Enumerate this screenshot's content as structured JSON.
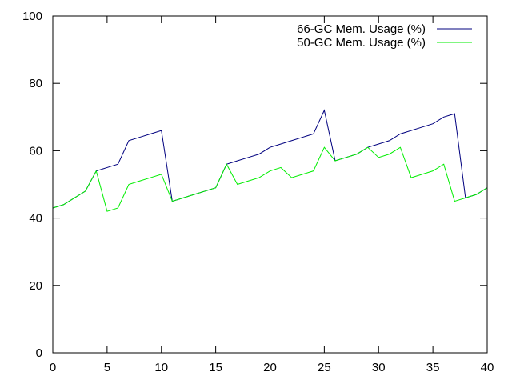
{
  "chart_data": {
    "type": "line",
    "xlim": [
      0,
      40
    ],
    "ylim": [
      0,
      100
    ],
    "x_ticks": [
      0,
      5,
      10,
      15,
      20,
      25,
      30,
      35,
      40
    ],
    "y_ticks": [
      0,
      20,
      40,
      60,
      80,
      100
    ],
    "grid": false,
    "legend_position": "top-right",
    "series": [
      {
        "name": "66-GC Mem. Usage (%)",
        "color": "#00007f",
        "points": [
          [
            0,
            43
          ],
          [
            1,
            44
          ],
          [
            2,
            46
          ],
          [
            3,
            48
          ],
          [
            4,
            54
          ],
          [
            5,
            55
          ],
          [
            6,
            56
          ],
          [
            7,
            63
          ],
          [
            8,
            64
          ],
          [
            9,
            65
          ],
          [
            10,
            66
          ],
          [
            11,
            45
          ],
          [
            12,
            46
          ],
          [
            13,
            47
          ],
          [
            14,
            48
          ],
          [
            15,
            49
          ],
          [
            16,
            56
          ],
          [
            17,
            57
          ],
          [
            18,
            58
          ],
          [
            19,
            59
          ],
          [
            20,
            61
          ],
          [
            21,
            62
          ],
          [
            22,
            63
          ],
          [
            23,
            64
          ],
          [
            24,
            65
          ],
          [
            25,
            72
          ],
          [
            26,
            57
          ],
          [
            27,
            58
          ],
          [
            28,
            59
          ],
          [
            29,
            61
          ],
          [
            30,
            62
          ],
          [
            31,
            63
          ],
          [
            32,
            65
          ],
          [
            33,
            66
          ],
          [
            34,
            67
          ],
          [
            35,
            68
          ],
          [
            36,
            70
          ],
          [
            37,
            71
          ],
          [
            38,
            46
          ],
          [
            39,
            47
          ],
          [
            40,
            49
          ]
        ]
      },
      {
        "name": "50-GC Mem. Usage (%)",
        "color": "#00ee00",
        "points": [
          [
            0,
            43
          ],
          [
            1,
            44
          ],
          [
            2,
            46
          ],
          [
            3,
            48
          ],
          [
            4,
            54
          ],
          [
            5,
            42
          ],
          [
            6,
            43
          ],
          [
            7,
            50
          ],
          [
            8,
            51
          ],
          [
            9,
            52
          ],
          [
            10,
            53
          ],
          [
            11,
            45
          ],
          [
            12,
            46
          ],
          [
            13,
            47
          ],
          [
            14,
            48
          ],
          [
            15,
            49
          ],
          [
            16,
            56
          ],
          [
            17,
            50
          ],
          [
            18,
            51
          ],
          [
            19,
            52
          ],
          [
            20,
            54
          ],
          [
            21,
            55
          ],
          [
            22,
            52
          ],
          [
            23,
            53
          ],
          [
            24,
            54
          ],
          [
            25,
            61
          ],
          [
            26,
            57
          ],
          [
            27,
            58
          ],
          [
            28,
            59
          ],
          [
            29,
            61
          ],
          [
            30,
            58
          ],
          [
            31,
            59
          ],
          [
            32,
            61
          ],
          [
            33,
            52
          ],
          [
            34,
            53
          ],
          [
            35,
            54
          ],
          [
            36,
            56
          ],
          [
            37,
            45
          ],
          [
            38,
            46
          ],
          [
            39,
            47
          ],
          [
            40,
            49
          ]
        ]
      }
    ]
  }
}
